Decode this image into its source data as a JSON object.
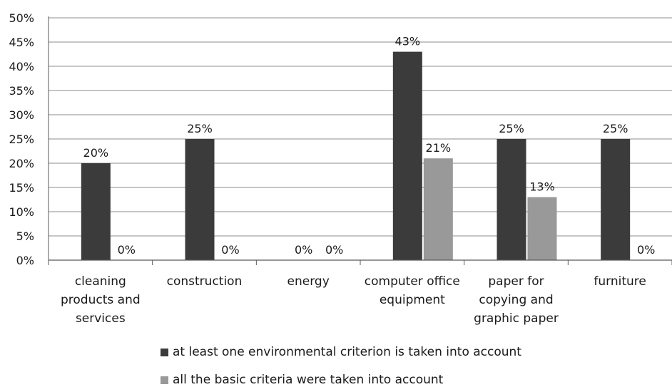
{
  "chart_data": {
    "type": "bar",
    "categories": [
      [
        "cleaning",
        "products and",
        "services"
      ],
      [
        "construction"
      ],
      [
        "energy"
      ],
      [
        "computer office",
        "equipment"
      ],
      [
        "paper for",
        "copying and",
        "graphic paper"
      ],
      [
        "furniture"
      ]
    ],
    "series": [
      {
        "name": "at least one environmental criterion is taken into account",
        "values": [
          20,
          25,
          0,
          43,
          25,
          25
        ],
        "labels": [
          "20%",
          "25%",
          "0%",
          "43%",
          "25%",
          "25%"
        ],
        "color": "#3b3b3b"
      },
      {
        "name": "all the basic criteria were taken into account",
        "values": [
          0,
          0,
          0,
          21,
          13,
          0
        ],
        "labels": [
          "0%",
          "0%",
          "0%",
          "21%",
          "13%",
          "0%"
        ],
        "color": "#999999"
      }
    ],
    "ylim": [
      0,
      50
    ],
    "yticks": [
      "0%",
      "5%",
      "10%",
      "15%",
      "20%",
      "25%",
      "30%",
      "35%",
      "40%",
      "45%",
      "50%"
    ],
    "grid": true,
    "legend_position": "bottom"
  }
}
